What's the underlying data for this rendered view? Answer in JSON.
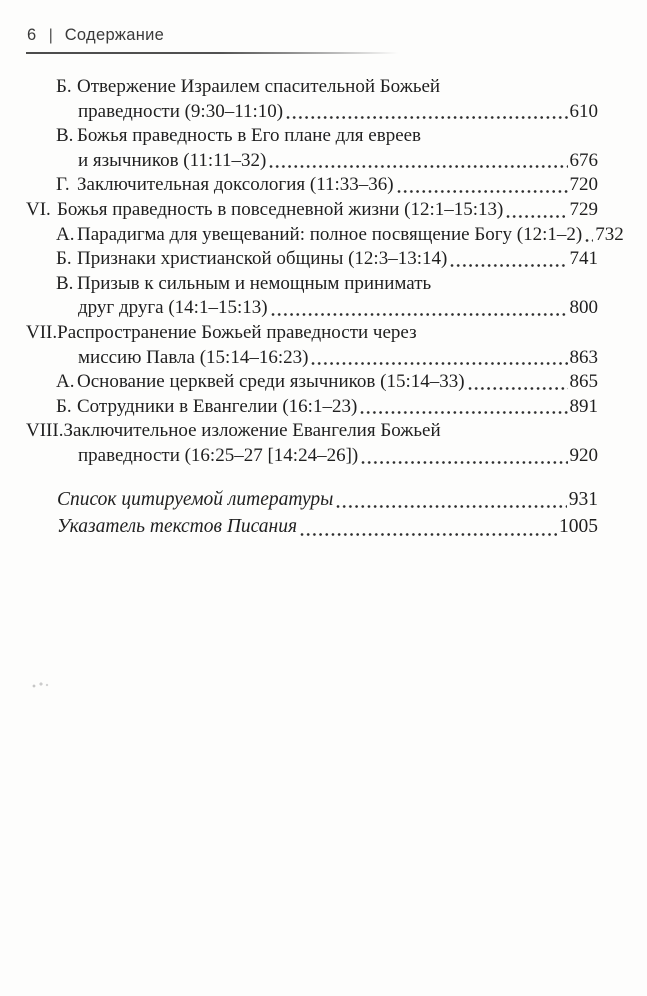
{
  "page": {
    "header": {
      "page_number": "6",
      "separator": "|",
      "title": "Содержание"
    },
    "toc": [
      {
        "type": "letter",
        "label": "Б.",
        "lines": [
          "Отвержение Израилем спасительной Божьей",
          "праведности (9:30–11:10)"
        ],
        "page": "610"
      },
      {
        "type": "letter",
        "label": "В.",
        "lines": [
          "Божья праведность в Его плане для евреев",
          "и язычников (11:11–32)"
        ],
        "page": "676"
      },
      {
        "type": "letter",
        "label": "Г.",
        "lines": [
          "Заключительная доксология (11:33–36)"
        ],
        "page": "720"
      },
      {
        "type": "roman",
        "label": "VI.",
        "lines": [
          "Божья праведность в повседневной жизни (12:1–15:13)"
        ],
        "page": "729"
      },
      {
        "type": "letter",
        "label": "А.",
        "lines": [
          "Парадигма для увещеваний: полное посвящение Богу (12:1–2)"
        ],
        "page": "732"
      },
      {
        "type": "letter",
        "label": "Б.",
        "lines": [
          "Признаки христианской общины (12:3–13:14)"
        ],
        "page": "741"
      },
      {
        "type": "letter",
        "label": "В.",
        "lines": [
          "Призыв к сильным и немощным принимать",
          "друг друга (14:1–15:13)"
        ],
        "page": "800"
      },
      {
        "type": "roman",
        "label": "VII.",
        "lines": [
          "Распространение Божьей праведности через",
          "миссию Павла (15:14–16:23)"
        ],
        "page": "863"
      },
      {
        "type": "letter",
        "label": "А.",
        "lines": [
          "Основание церквей среди язычников (15:14–33)"
        ],
        "page": "865"
      },
      {
        "type": "letter",
        "label": "Б.",
        "lines": [
          "Сотрудники в Евангелии (16:1–23)"
        ],
        "page": "891"
      },
      {
        "type": "roman",
        "label": "VIII.",
        "lines": [
          "Заключительное изложение Евангелия Божьей",
          "праведности (16:25–27 [14:24–26])"
        ],
        "page": "920"
      }
    ],
    "back_matter": [
      {
        "label": "Список цитируемой литературы",
        "page": "931"
      },
      {
        "label": "Указатель текстов Писания",
        "page": "1005"
      }
    ],
    "colors": {
      "text": "#1f1f1f",
      "header_text": "#3a3a3a",
      "rule": "#4c4c4c",
      "background": "#fdfdfc"
    }
  }
}
